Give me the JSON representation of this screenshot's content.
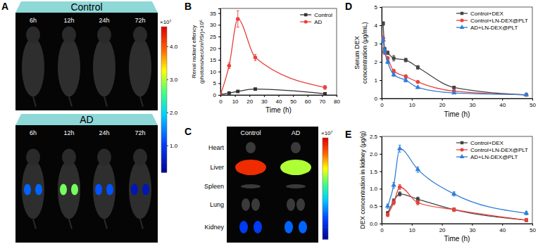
{
  "chart_data": [
    {
      "type": "image",
      "panel_label": "A",
      "timepoints": [
        "6h",
        "12h",
        "24h",
        "72h"
      ],
      "series": [
        {
          "name": "Control",
          "values": [
            null,
            null,
            null,
            null
          ]
        },
        {
          "name": "AD",
          "values": [
            1.3,
            2.8,
            1.2,
            0.5
          ]
        }
      ],
      "colorbar": {
        "label": "×10⁷",
        "lim": [
          0.2,
          4.6
        ],
        "ticks": [
          {
            "value": 1,
            "label": "1.0"
          },
          {
            "value": 2,
            "label": "2.0"
          },
          {
            "value": 3,
            "label": "3.0"
          },
          {
            "value": 4,
            "label": "4.0"
          }
        ]
      }
    },
    {
      "type": "line",
      "panel_label": "B",
      "xlabel": "Time (h)",
      "ylabel": [
        "Renal radiant effency",
        "(photons/sec/cm²/Sr)×10⁶"
      ],
      "x": [
        0,
        6,
        12,
        24,
        72
      ],
      "xlim": [
        0,
        80
      ],
      "xticks": [
        0,
        10,
        20,
        30,
        40,
        50,
        60,
        70,
        80
      ],
      "ylim": [
        0,
        37
      ],
      "yticks": [
        0,
        5,
        10,
        15,
        20,
        25,
        30,
        35
      ],
      "legend": "upper right",
      "series": [
        {
          "name": "Control",
          "color": "#333333",
          "marker": "square",
          "values": [
            0.2,
            0.8,
            1.5,
            2.5,
            0.5
          ],
          "errors": [
            0.1,
            0.2,
            0.3,
            0.3,
            0.2
          ]
        },
        {
          "name": "AD",
          "color": "#e8413c",
          "marker": "circle",
          "values": [
            0,
            12.5,
            32.5,
            16,
            3.2
          ],
          "errors": [
            0.2,
            1.2,
            3.5,
            1.3,
            0.8
          ]
        }
      ]
    },
    {
      "type": "image",
      "panel_label": "C",
      "categories": [
        "Heart",
        "Liver",
        "Spleen",
        "Lung",
        "Kidney"
      ],
      "series": [
        {
          "name": "Control",
          "values": [
            null,
            4.3,
            null,
            null,
            1.0
          ]
        },
        {
          "name": "AD",
          "values": [
            null,
            3.0,
            null,
            null,
            1.3
          ]
        }
      ],
      "colorbar": {
        "label": "×10⁷",
        "lim": [
          0.2,
          4.6
        ]
      }
    },
    {
      "type": "line",
      "panel_label": "D",
      "xlabel": "Time (h)",
      "ylabel": [
        "Serum DEX",
        "concentration (μg/mL)"
      ],
      "x": [
        0.5,
        1,
        2,
        4,
        8,
        12,
        24,
        48
      ],
      "xlim": [
        0,
        50
      ],
      "xticks": [
        0,
        10,
        20,
        30,
        40,
        50
      ],
      "ylim": [
        0,
        5
      ],
      "yticks": [
        0,
        1,
        2,
        3,
        4,
        5
      ],
      "legend": "upper right",
      "series": [
        {
          "name": "Control+DEX",
          "color": "#444444",
          "marker": "square",
          "values": [
            4.1,
            2.7,
            2.5,
            2.2,
            2.1,
            1.7,
            0.6,
            0.2
          ],
          "errors": [
            0.1,
            0.1,
            0.1,
            0.15,
            0.1,
            0.1,
            0.05,
            0.05
          ]
        },
        {
          "name": "Control+LN-DEX@PLT",
          "color": "#e8413c",
          "marker": "circle",
          "values": [
            3.3,
            2.5,
            2.2,
            1.5,
            1.2,
            0.9,
            0.4,
            0.2
          ],
          "errors": [
            0.15,
            0.1,
            0.1,
            0.1,
            0.1,
            0.05,
            0.05,
            0.05
          ]
        },
        {
          "name": "AD+LN-DEX@PLT",
          "color": "#2f7ed8",
          "marker": "triangle",
          "values": [
            3.2,
            2.6,
            2.0,
            1.3,
            1.0,
            0.6,
            0.3,
            0.2
          ],
          "errors": [
            0.15,
            0.1,
            0.1,
            0.1,
            0.1,
            0.05,
            0.05,
            0.05
          ]
        }
      ]
    },
    {
      "type": "line",
      "panel_label": "E",
      "xlabel": "Time (h)",
      "ylabel": "DEX concentration in kidney (μg/g)",
      "x": [
        2,
        4,
        6,
        12,
        24,
        48
      ],
      "xlim": [
        0,
        50
      ],
      "xticks": [
        0,
        10,
        20,
        30,
        40,
        50
      ],
      "ylim": [
        0,
        2.5
      ],
      "yticks": [
        {
          "value": 0,
          "label": "0.0"
        },
        {
          "value": 0.5,
          "label": "0.5"
        },
        {
          "value": 1,
          "label": "1.0"
        },
        {
          "value": 1.5,
          "label": "1.5"
        },
        {
          "value": 2,
          "label": "2.0"
        },
        {
          "value": 2.5,
          "label": "2.5"
        }
      ],
      "legend": "upper right",
      "series": [
        {
          "name": "Control+DEX",
          "color": "#444444",
          "marker": "square",
          "values": [
            0.3,
            0.65,
            0.85,
            0.7,
            0.4,
            0.1
          ],
          "errors": [
            0.05,
            0.06,
            0.06,
            0.06,
            0.05,
            0.04
          ]
        },
        {
          "name": "Control+LN-DEX@PLT",
          "color": "#e8413c",
          "marker": "circle",
          "values": [
            0.25,
            0.6,
            1.05,
            0.6,
            0.4,
            0.1
          ],
          "errors": [
            0.05,
            0.06,
            0.07,
            0.06,
            0.05,
            0.04
          ]
        },
        {
          "name": "AD+LN-DEX@PLT",
          "color": "#2f7ed8",
          "marker": "triangle",
          "values": [
            0.5,
            1.1,
            2.15,
            1.55,
            0.85,
            0.3
          ],
          "errors": [
            0.06,
            0.08,
            0.1,
            0.08,
            0.06,
            0.05
          ]
        }
      ]
    }
  ]
}
